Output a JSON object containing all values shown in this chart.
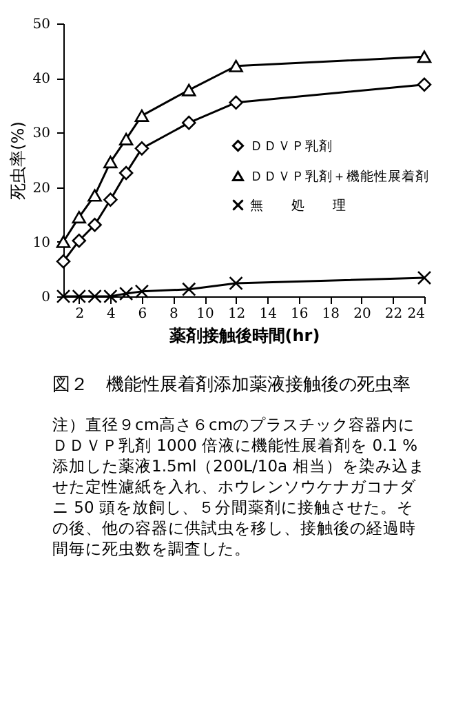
{
  "chart_data": {
    "type": "line",
    "title": "図２　機能性展着剤添加薬液接触後の死虫率",
    "xlabel": "薬剤接触後時間(hr)",
    "ylabel": "死虫率(%)",
    "x": [
      1,
      2,
      3,
      4,
      5,
      6,
      9,
      12,
      24
    ],
    "series": [
      {
        "name": "ＤＤＶＰ乳剤",
        "color": "#000000",
        "marker": "diamond",
        "values": [
          6.4,
          10.2,
          13.1,
          17.7,
          22.6,
          27.1,
          31.8,
          35.5,
          38.8
        ]
      },
      {
        "name": "ＤＤＶＰ乳剤＋機能性展着剤",
        "color": "#000000",
        "marker": "triangle",
        "values": [
          10,
          14.5,
          18.5,
          24.6,
          28.8,
          33.1,
          37.8,
          42.2,
          43.9
        ]
      },
      {
        "name": "無　　処　　理",
        "color": "#000000",
        "marker": "cross",
        "values": [
          0,
          0,
          0,
          0,
          0.5,
          0.9,
          1.3,
          2.4,
          3.4
        ]
      }
    ],
    "xlim": [
      1,
      24
    ],
    "xticks": [
      2,
      4,
      6,
      8,
      10,
      12,
      14,
      16,
      18,
      20,
      22,
      24
    ],
    "ylim": [
      0,
      50
    ],
    "yticks": [
      0,
      10,
      20,
      30,
      40,
      50
    ],
    "grid": false,
    "legend": "right",
    "line_style": "solid",
    "annotations": [
      "注）直径９cm高さ６cmのプラスチック容器内にＤＤＶＰ乳剤 1000 倍液に機能性展着剤を 0.1 %添加した薬液1.5ml（200L/10a 相当）を染み込ませた定性濾紙を入れ、ホウレンソウケナガコナダニ 50 頭を放飼し、５分間薬剤に接触させた。その後、他の容器に供試虫を移し、接触後の経過時間毎に死虫数を調査した。"
    ]
  }
}
